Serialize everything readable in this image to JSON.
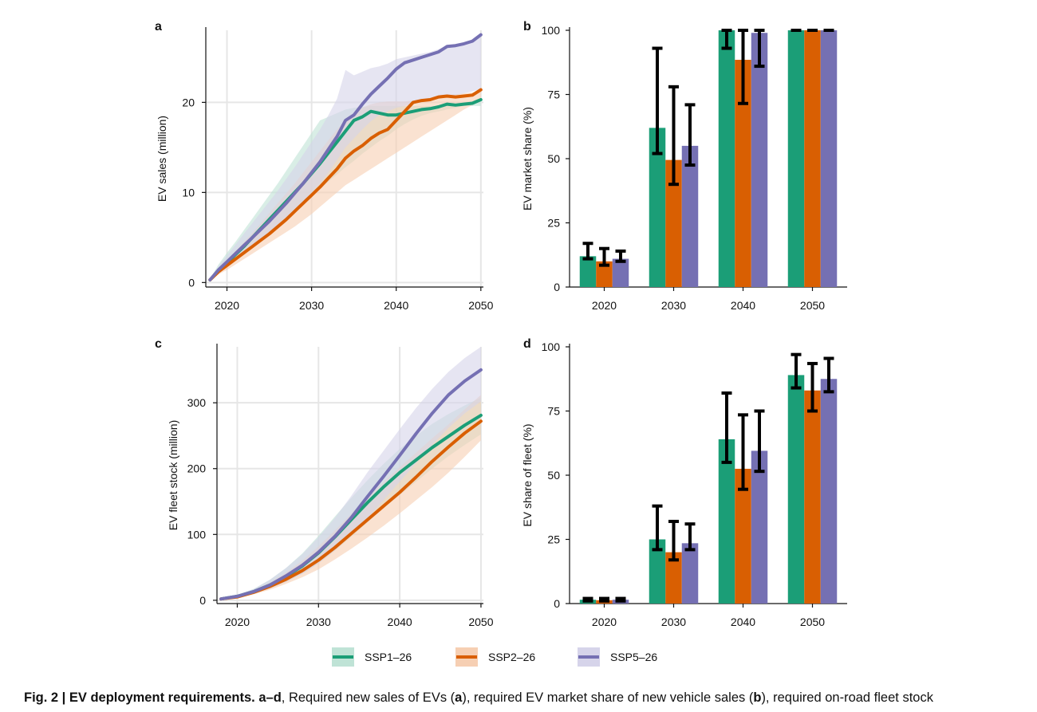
{
  "caption": {
    "fig_label": "Fig. 2 | EV deployment requirements.",
    "panels_ref": "a–d",
    "t1": ", Required new sales of EVs (",
    "a": "a",
    "t2": "), required EV market share of new vehicle sales (",
    "b": "b",
    "t3": "), required on-road fleet stock"
  },
  "legend": {
    "items": [
      {
        "label": "SSP1–26",
        "color": "#1b9e77",
        "band": "#bfe3d6"
      },
      {
        "label": "SSP2–26",
        "color": "#d95f02",
        "band": "#f6cfb3"
      },
      {
        "label": "SSP5–26",
        "color": "#7570b3",
        "band": "#d6d4ea"
      }
    ]
  },
  "colors": {
    "SSP1-26": "#1b9e77",
    "SSP2-26": "#d95f02",
    "SSP5-26": "#7570b3",
    "grid": "#e6e6e6",
    "error_bar": "#000000"
  },
  "chart_data": [
    {
      "panel": "a",
      "type": "line",
      "ylabel": "EV sales (million)",
      "xlim": [
        2017.5,
        2050.3
      ],
      "ylim": [
        -0.5,
        28
      ],
      "xticks": [
        2020,
        2030,
        2040,
        2050
      ],
      "yticks": [
        0,
        10,
        20
      ],
      "grid": true,
      "x": [
        2018,
        2019,
        2020,
        2021,
        2022,
        2023,
        2024,
        2025,
        2026,
        2027,
        2028,
        2029,
        2030,
        2031,
        2032,
        2033,
        2034,
        2035,
        2036,
        2037,
        2038,
        2039,
        2040,
        2041,
        2042,
        2043,
        2044,
        2045,
        2046,
        2047,
        2048,
        2049,
        2050
      ],
      "series": [
        {
          "name": "SSP1–26",
          "values": [
            0.3,
            1.3,
            2.2,
            3.1,
            4.0,
            5.0,
            6.0,
            7.0,
            8.0,
            9.0,
            10.0,
            11.0,
            12.1,
            13.2,
            14.4,
            15.6,
            16.8,
            18.0,
            18.4,
            19.0,
            18.8,
            18.6,
            18.6,
            18.8,
            19.0,
            19.2,
            19.3,
            19.5,
            19.8,
            19.7,
            19.8,
            19.9,
            20.3
          ],
          "band_upper": [
            0.4,
            2.0,
            3.3,
            4.5,
            5.8,
            7.1,
            8.4,
            9.7,
            11.0,
            12.4,
            13.8,
            15.2,
            16.6,
            18.0,
            18.4,
            18.8,
            19.2,
            19.4,
            19.5,
            19.6,
            19.6,
            19.6,
            19.6,
            19.6,
            19.6,
            19.6,
            19.6,
            19.6,
            19.6,
            19.6,
            19.6,
            19.6,
            19.6
          ],
          "band_lower": [
            0.2,
            1.1,
            1.9,
            2.6,
            3.3,
            4.0,
            4.8,
            5.6,
            6.4,
            7.2,
            8.0,
            8.8,
            9.6,
            10.4,
            11.2,
            12.0,
            12.8,
            13.5,
            14.3,
            15.0,
            15.7,
            16.3,
            17.0,
            17.6,
            18.1,
            18.5,
            18.8,
            19.0,
            19.2,
            19.4,
            19.6,
            19.8,
            20.0
          ]
        },
        {
          "name": "SSP2–26",
          "values": [
            0.3,
            1.2,
            1.9,
            2.6,
            3.3,
            4.0,
            4.7,
            5.4,
            6.2,
            7.0,
            7.9,
            8.8,
            9.7,
            10.6,
            11.6,
            12.6,
            13.8,
            14.6,
            15.2,
            16.0,
            16.6,
            17.0,
            18.0,
            19.0,
            20.0,
            20.2,
            20.3,
            20.6,
            20.7,
            20.6,
            20.7,
            20.8,
            21.4
          ],
          "band_upper": [
            0.4,
            1.6,
            2.5,
            3.5,
            4.5,
            5.5,
            6.6,
            7.7,
            8.8,
            9.9,
            11.0,
            12.2,
            13.4,
            14.6,
            15.8,
            17.0,
            18.0,
            18.8,
            19.4,
            19.8,
            20.0,
            20.1,
            20.1,
            20.1,
            20.2,
            20.3,
            20.4,
            20.6,
            20.8,
            20.9,
            21.0,
            21.1,
            21.2
          ],
          "band_lower": [
            0.2,
            0.9,
            1.4,
            2.0,
            2.6,
            3.2,
            3.8,
            4.4,
            5.0,
            5.6,
            6.2,
            6.9,
            7.6,
            8.4,
            9.2,
            10.0,
            10.8,
            11.4,
            12.0,
            12.6,
            13.2,
            13.8,
            14.4,
            15.0,
            15.6,
            16.2,
            16.8,
            17.4,
            18.0,
            18.6,
            19.2,
            19.7,
            20.1
          ]
        },
        {
          "name": "SSP5–26",
          "values": [
            0.3,
            1.4,
            2.3,
            3.2,
            4.1,
            5.0,
            5.9,
            6.8,
            7.8,
            8.8,
            9.9,
            11.0,
            12.2,
            13.4,
            14.8,
            16.2,
            18.0,
            18.6,
            19.8,
            20.9,
            21.8,
            22.7,
            23.7,
            24.4,
            24.7,
            25.0,
            25.3,
            25.6,
            26.2,
            26.3,
            26.5,
            26.8,
            27.5
          ],
          "band_upper": [
            0.4,
            1.8,
            3.0,
            4.2,
            5.4,
            6.6,
            7.8,
            9.0,
            10.2,
            11.5,
            12.8,
            14.2,
            15.6,
            17.0,
            18.6,
            20.4,
            23.6,
            23.0,
            23.4,
            23.8,
            24.0,
            24.3,
            24.8,
            25.0,
            25.2,
            25.4,
            25.6,
            25.9,
            26.3,
            26.4,
            26.6,
            26.9,
            27.5
          ],
          "band_lower": [
            0.2,
            1.0,
            1.7,
            2.4,
            3.1,
            3.8,
            4.6,
            5.4,
            6.2,
            7.1,
            8.0,
            9.0,
            10.0,
            11.0,
            12.2,
            13.6,
            15.0,
            16.0,
            17.0,
            17.9,
            18.6,
            19.0,
            19.4,
            19.6,
            19.8,
            20.0,
            20.2,
            20.4,
            20.6,
            20.8,
            21.0,
            21.2,
            21.5
          ]
        }
      ]
    },
    {
      "panel": "b",
      "type": "bar",
      "ylabel": "EV market share (%)",
      "categories": [
        "2020",
        "2030",
        "2040",
        "2050"
      ],
      "ylim": [
        0,
        100
      ],
      "yticks": [
        0,
        25,
        50,
        75,
        100
      ],
      "series": [
        {
          "name": "SSP1–26",
          "values": [
            12,
            62,
            100,
            100
          ],
          "err_low": [
            11,
            52,
            93,
            100
          ],
          "err_high": [
            17,
            93,
            100,
            100
          ]
        },
        {
          "name": "SSP2–26",
          "values": [
            10,
            49.5,
            88.5,
            100
          ],
          "err_low": [
            8.5,
            40,
            71.5,
            100
          ],
          "err_high": [
            15,
            78,
            100,
            100
          ]
        },
        {
          "name": "SSP5–26",
          "values": [
            11,
            55,
            99,
            100
          ],
          "err_low": [
            10,
            47.5,
            86,
            100
          ],
          "err_high": [
            14,
            71,
            100,
            100
          ]
        }
      ]
    },
    {
      "panel": "c",
      "type": "line",
      "ylabel": "EV fleet stock (million)",
      "xlim": [
        2017.5,
        2050.3
      ],
      "ylim": [
        -5,
        385
      ],
      "xticks": [
        2020,
        2030,
        2040,
        2050
      ],
      "yticks": [
        0,
        100,
        200,
        300
      ],
      "grid": true,
      "x": [
        2018,
        2020,
        2022,
        2024,
        2026,
        2028,
        2030,
        2032,
        2034,
        2036,
        2038,
        2040,
        2042,
        2044,
        2046,
        2048,
        2050
      ],
      "series": [
        {
          "name": "SSP1–26",
          "values": [
            2,
            6,
            13,
            23,
            36,
            52,
            72,
            96,
            122,
            148,
            172,
            194,
            213,
            232,
            249,
            266,
            281
          ],
          "band_upper": [
            3,
            8,
            17,
            31,
            49,
            71,
            98,
            127,
            155,
            182,
            207,
            230,
            250,
            268,
            283,
            296,
            308
          ],
          "band_lower": [
            1,
            4,
            10,
            18,
            28,
            40,
            56,
            75,
            96,
            118,
            140,
            160,
            180,
            200,
            219,
            236,
            252
          ]
        },
        {
          "name": "SSP2–26",
          "values": [
            2,
            5,
            12,
            21,
            32,
            45,
            61,
            80,
            101,
            122,
            143,
            164,
            187,
            211,
            233,
            254,
            272
          ],
          "band_upper": [
            3,
            7,
            15,
            27,
            42,
            60,
            82,
            106,
            131,
            156,
            180,
            202,
            224,
            246,
            267,
            290,
            312
          ],
          "band_lower": [
            1,
            4,
            9,
            16,
            25,
            35,
            47,
            62,
            78,
            95,
            113,
            132,
            152,
            172,
            194,
            218,
            243
          ]
        },
        {
          "name": "SSP5–26",
          "values": [
            2,
            6,
            13,
            23,
            37,
            53,
            73,
            97,
            125,
            157,
            188,
            220,
            253,
            284,
            312,
            333,
            350
          ],
          "band_upper": [
            3,
            8,
            17,
            31,
            49,
            70,
            96,
            125,
            158,
            194,
            227,
            260,
            292,
            321,
            347,
            368,
            385
          ],
          "band_lower": [
            1,
            4,
            10,
            18,
            28,
            40,
            56,
            76,
            98,
            124,
            152,
            180,
            208,
            236,
            262,
            284,
            302
          ]
        }
      ]
    },
    {
      "panel": "d",
      "type": "bar",
      "ylabel": "EV share of fleet (%)",
      "categories": [
        "2020",
        "2030",
        "2040",
        "2050"
      ],
      "ylim": [
        0,
        100
      ],
      "yticks": [
        0,
        25,
        50,
        75,
        100
      ],
      "series": [
        {
          "name": "SSP1–26",
          "values": [
            1.5,
            25,
            64,
            89
          ],
          "err_low": [
            1,
            21,
            55,
            84
          ],
          "err_high": [
            2,
            38,
            82,
            97
          ]
        },
        {
          "name": "SSP2–26",
          "values": [
            1.3,
            20,
            52.5,
            83
          ],
          "err_low": [
            1,
            17,
            44.5,
            75
          ],
          "err_high": [
            2,
            32,
            73.5,
            93.5
          ]
        },
        {
          "name": "SSP5–26",
          "values": [
            1.5,
            23.5,
            59.5,
            87.5
          ],
          "err_low": [
            1,
            21,
            51.5,
            82.5
          ],
          "err_high": [
            2,
            31,
            75,
            95.5
          ]
        }
      ]
    }
  ]
}
